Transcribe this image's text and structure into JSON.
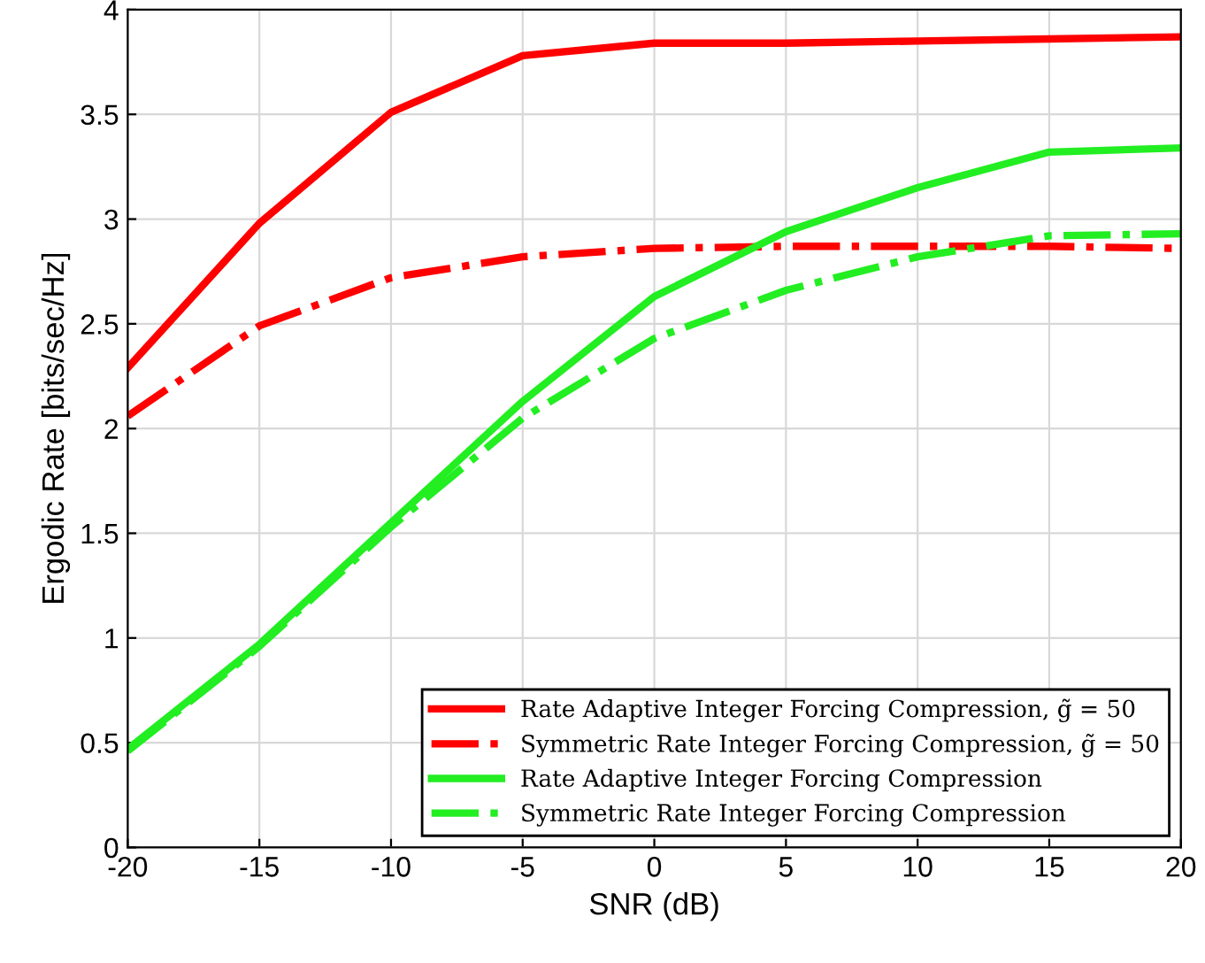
{
  "chart_data": {
    "type": "line",
    "xlabel": "SNR (dB)",
    "ylabel": "Ergodic Rate [bits/sec/Hz]",
    "x": [
      -20,
      -15,
      -10,
      -5,
      0,
      5,
      10,
      15,
      20
    ],
    "series": [
      {
        "name": "Rate Adaptive Integer Forcing Compression, g̃ = 50",
        "color": "#ff0000",
        "line_style": "solid",
        "values": [
          2.29,
          2.98,
          3.51,
          3.78,
          3.84,
          3.84,
          3.85,
          3.86,
          3.87
        ]
      },
      {
        "name": "Symmetric Rate Integer Forcing Compression, g̃ = 50",
        "color": "#ff0000",
        "line_style": "dashdot",
        "values": [
          2.06,
          2.49,
          2.72,
          2.82,
          2.86,
          2.87,
          2.87,
          2.87,
          2.86
        ]
      },
      {
        "name": "Rate Adaptive Integer Forcing Compression",
        "color": "#22ee22",
        "line_style": "solid",
        "values": [
          0.47,
          0.97,
          1.55,
          2.13,
          2.63,
          2.94,
          3.15,
          3.32,
          3.34
        ]
      },
      {
        "name": "Symmetric Rate Integer Forcing Compression",
        "color": "#22ee22",
        "line_style": "dashdot",
        "values": [
          0.46,
          0.96,
          1.53,
          2.05,
          2.43,
          2.66,
          2.82,
          2.92,
          2.93
        ]
      }
    ],
    "xlim": [
      -20,
      20
    ],
    "ylim": [
      0,
      4
    ],
    "xticks": [
      -20,
      -15,
      -10,
      -5,
      0,
      5,
      10,
      15,
      20
    ],
    "yticks": [
      0,
      0.5,
      1,
      1.5,
      2,
      2.5,
      3,
      3.5,
      4
    ],
    "grid": true,
    "legend": "bottom right",
    "marker": "none"
  }
}
